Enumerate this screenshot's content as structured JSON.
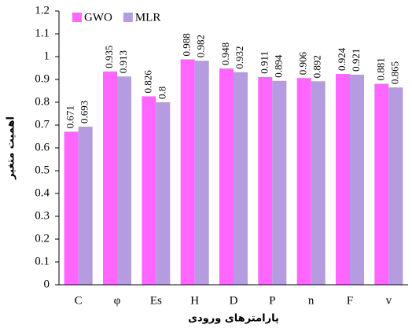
{
  "chart_data": {
    "type": "bar",
    "x_label": "پارامترهای ورودی",
    "y_label": "اهمیت متغیر",
    "categories": [
      "C",
      "φ",
      "Es",
      "H",
      "D",
      "P",
      "n",
      "F",
      "v"
    ],
    "series": [
      {
        "name": "GWO",
        "color": "#ff66ff",
        "values": [
          0.671,
          0.935,
          0.826,
          0.988,
          0.948,
          0.911,
          0.906,
          0.924,
          0.881
        ]
      },
      {
        "name": "MLR",
        "color": "#b59be0",
        "values": [
          0.693,
          0.913,
          0.8,
          0.982,
          0.932,
          0.894,
          0.892,
          0.921,
          0.865
        ]
      }
    ],
    "ylim": [
      0,
      1.2
    ],
    "yticks": [
      0,
      0.1,
      0.2,
      0.3,
      0.4,
      0.5,
      0.6,
      0.7,
      0.8,
      0.9,
      1,
      1.1,
      1.2
    ],
    "grid": false,
    "legend": "top-left"
  }
}
